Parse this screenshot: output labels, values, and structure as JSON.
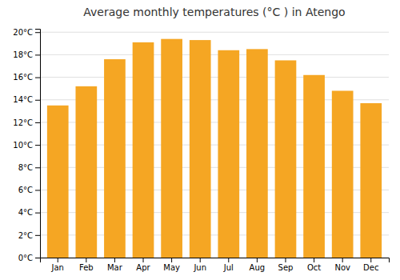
{
  "chart_data": {
    "type": "bar",
    "title": "Average monthly temperatures (°C ) in Atengo",
    "categories": [
      "Jan",
      "Feb",
      "Mar",
      "Apr",
      "May",
      "Jun",
      "Jul",
      "Aug",
      "Sep",
      "Oct",
      "Nov",
      "Dec"
    ],
    "values": [
      13.5,
      15.2,
      17.6,
      19.1,
      19.4,
      19.3,
      18.4,
      18.5,
      17.5,
      16.2,
      14.8,
      13.7
    ],
    "color": "#F5A623",
    "ylim": [
      0,
      20.3
    ],
    "yticks": [
      {
        "value": 0,
        "label": "0°C"
      },
      {
        "value": 2,
        "label": "2°C"
      },
      {
        "value": 4,
        "label": "4°C"
      },
      {
        "value": 6,
        "label": "6°C"
      },
      {
        "value": 8,
        "label": "8°C"
      },
      {
        "value": 10,
        "label": "10°C"
      },
      {
        "value": 12,
        "label": "12°C"
      },
      {
        "value": 14,
        "label": "14°C"
      },
      {
        "value": 16,
        "label": "16°C"
      },
      {
        "value": 18,
        "label": "18°C"
      },
      {
        "value": 20,
        "label": "20°C"
      }
    ],
    "grid": true
  }
}
